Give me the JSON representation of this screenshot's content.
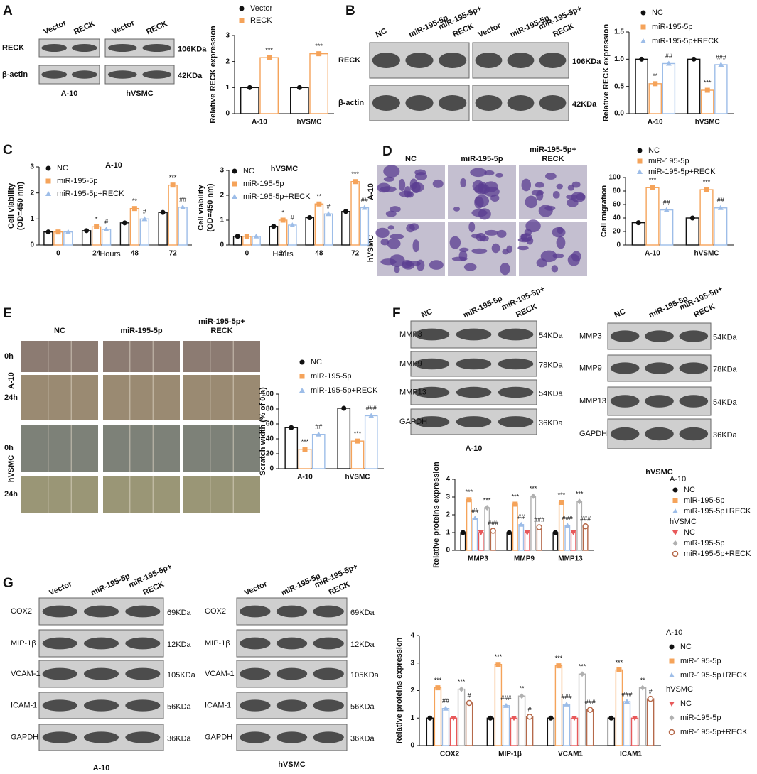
{
  "panel_labels": [
    "A",
    "B",
    "C",
    "D",
    "E",
    "F",
    "G"
  ],
  "blots": [
    {
      "cell_lines": [
        "A-10",
        "hVSMC"
      ],
      "lanes": [
        [
          "Vector"
        ],
        [
          "RECK"
        ],
        [
          "Vector"
        ],
        [
          "RECK"
        ]
      ],
      "rows": [
        {
          "protein": "RECK",
          "size": "106KDa"
        },
        {
          "protein": "β-actin",
          "size": "42KDa"
        }
      ]
    },
    {
      "lanes": [
        [
          "NC"
        ],
        [
          "miR-195-5p"
        ],
        [
          "miR-195-5p+",
          "RECK"
        ],
        [
          "Vector"
        ],
        [
          "miR-195-5p"
        ],
        [
          "miR-195-5p+",
          "RECK"
        ]
      ],
      "rows": [
        {
          "protein": "RECK",
          "size": "106KDa"
        },
        {
          "protein": "β-actin",
          "size": "42KDa"
        }
      ]
    },
    {
      "cell_lines": [
        "A-10"
      ],
      "lanes": [
        [
          "NC"
        ],
        [
          "miR-195-5p"
        ],
        [
          "miR-195-5p+",
          "RECK"
        ]
      ],
      "rows": [
        {
          "protein": "MMP3",
          "size": "54KDa"
        },
        {
          "protein": "MMP9",
          "size": "78KDa"
        },
        {
          "protein": "MMP13",
          "size": "54KDa"
        },
        {
          "protein": "GAPDH",
          "size": "36KDa"
        }
      ]
    },
    {
      "cell_lines": [
        "hVSMC"
      ],
      "lanes": [
        [
          "NC"
        ],
        [
          "miR-195-5p"
        ],
        [
          "miR-195-5p+",
          "RECK"
        ]
      ],
      "rows": [
        {
          "protein": "MMP3",
          "size": "54KDa"
        },
        {
          "protein": "MMP9",
          "size": "78KDa"
        },
        {
          "protein": "MMP13",
          "size": "54KDa"
        },
        {
          "protein": "GAPDH",
          "size": "36KDa"
        }
      ]
    },
    {
      "cell_lines": [
        "A-10"
      ],
      "lanes": [
        [
          "Vector"
        ],
        [
          "miR-195-5p"
        ],
        [
          "miR-195-5p+",
          "RECK"
        ]
      ],
      "rows": [
        {
          "protein": "COX2",
          "size": "69KDa"
        },
        {
          "protein": "MIP-1β",
          "size": "12KDa"
        },
        {
          "protein": "VCAM-1",
          "size": "105KDa"
        },
        {
          "protein": "ICAM-1",
          "size": "56KDa"
        },
        {
          "protein": "GAPDH",
          "size": "36KDa"
        }
      ]
    },
    {
      "cell_lines": [
        "hVSMC"
      ],
      "lanes": [
        [
          "Vector"
        ],
        [
          "miR-195-5p"
        ],
        [
          "miR-195-5p+",
          "RECK"
        ]
      ],
      "rows": [
        {
          "protein": "COX2",
          "size": "69KDa"
        },
        {
          "protein": "MIP-1β",
          "size": "12KDa"
        },
        {
          "protein": "VCAM-1",
          "size": "105KDa"
        },
        {
          "protein": "ICAM-1",
          "size": "56KDa"
        },
        {
          "protein": "GAPDH",
          "size": "36KDa"
        }
      ]
    }
  ],
  "micrographs": [
    {
      "columns": [
        [
          "NC"
        ],
        [
          "miR-195-5p"
        ],
        [
          "miR-195-5p+",
          "RECK"
        ]
      ],
      "row_groups": [
        {
          "name": "A-10",
          "rows": []
        },
        {
          "name": "hVSMC",
          "rows": []
        }
      ]
    },
    {
      "columns": [
        [
          "NC"
        ],
        [
          "miR-195-5p"
        ],
        [
          "miR-195-5p+",
          "RECK"
        ]
      ],
      "row_groups": [
        {
          "name": "A-10",
          "rows": [
            "0h",
            "24h"
          ]
        },
        {
          "name": "hVSMC",
          "rows": [
            "0h",
            "24h"
          ]
        }
      ]
    }
  ],
  "chart_data": [
    {
      "type": "bar",
      "ylabel": [
        "Relative RECK expression"
      ],
      "categories": [
        "A-10",
        "hVSMC"
      ],
      "series": [
        {
          "name": "Vector",
          "color": "#111111",
          "marker": "circle",
          "values": [
            1,
            1
          ],
          "significance": [
            null,
            null
          ]
        },
        {
          "name": "RECK",
          "color": "#f5a35a",
          "marker": "square",
          "values": [
            2.15,
            2.3
          ],
          "significance": [
            "***",
            "***"
          ]
        }
      ],
      "ylim": [
        0,
        3
      ],
      "yticks": [
        0,
        1,
        2,
        3
      ]
    },
    {
      "type": "bar",
      "ylabel": [
        "Relative RECK expression"
      ],
      "categories": [
        "A-10",
        "hVSMC"
      ],
      "series": [
        {
          "name": "NC",
          "color": "#111111",
          "marker": "circle",
          "values": [
            1,
            1
          ],
          "significance": [
            null,
            null
          ]
        },
        {
          "name": "miR-195-5p",
          "color": "#f5a35a",
          "marker": "square",
          "values": [
            0.55,
            0.43
          ],
          "significance": [
            "**",
            "***"
          ]
        },
        {
          "name": "miR-195-5p+RECK",
          "color": "#9dbde8",
          "marker": "triangle",
          "values": [
            0.92,
            0.9
          ],
          "significance": [
            "##",
            "###"
          ]
        }
      ],
      "ylim": [
        0,
        1.5
      ],
      "yticks": [
        {
          "value": 0,
          "label": "0.0"
        },
        0.5,
        {
          "value": 1,
          "label": "1.0"
        },
        1.5
      ]
    },
    {
      "type": "bar",
      "title": "A-10",
      "xlabel": "Hours",
      "ylabel": [
        "Cell viability",
        "(OD=450 nm)"
      ],
      "categories": [
        "0",
        "24",
        "48",
        "72"
      ],
      "series": [
        {
          "name": "NC",
          "color": "#111111",
          "marker": "circle",
          "values": [
            0.5,
            0.55,
            0.85,
            1.25
          ],
          "significance": [
            null,
            null,
            null,
            null
          ]
        },
        {
          "name": "miR-195-5p",
          "color": "#f5a35a",
          "marker": "square",
          "values": [
            0.5,
            0.7,
            1.4,
            2.3
          ],
          "significance": [
            null,
            "*",
            "**",
            "***"
          ]
        },
        {
          "name": "miR-195-5p+RECK",
          "color": "#9dbde8",
          "marker": "triangle",
          "values": [
            0.5,
            0.6,
            1.0,
            1.45
          ],
          "significance": [
            null,
            "#",
            "#",
            "##"
          ]
        }
      ],
      "ylim": [
        0,
        3
      ],
      "yticks": [
        0,
        1,
        2,
        3
      ]
    },
    {
      "type": "bar",
      "title": "hVSMC",
      "xlabel": "Hours",
      "ylabel": [
        "Cell viability",
        "(OD=450 nm)"
      ],
      "categories": [
        "0",
        "24",
        "48",
        "72"
      ],
      "series": [
        {
          "name": "NC",
          "color": "#111111",
          "marker": "circle",
          "values": [
            0.35,
            0.75,
            1.1,
            1.35
          ],
          "significance": [
            null,
            null,
            null,
            null
          ]
        },
        {
          "name": "miR-195-5p",
          "color": "#f5a35a",
          "marker": "square",
          "values": [
            0.35,
            1.0,
            1.65,
            2.55
          ],
          "significance": [
            null,
            "*",
            "**",
            "***"
          ]
        },
        {
          "name": "miR-195-5p+RECK",
          "color": "#9dbde8",
          "marker": "triangle",
          "values": [
            0.35,
            0.8,
            1.25,
            1.5
          ],
          "significance": [
            null,
            "#",
            "#",
            "##"
          ]
        }
      ],
      "ylim": [
        0,
        3
      ],
      "yticks": [
        0,
        1,
        2,
        3
      ]
    },
    {
      "type": "bar",
      "ylabel": [
        "Cell migration"
      ],
      "categories": [
        "A-10",
        "hVSMC"
      ],
      "series": [
        {
          "name": "NC",
          "color": "#111111",
          "marker": "circle",
          "values": [
            33,
            40
          ],
          "significance": [
            null,
            null
          ]
        },
        {
          "name": "miR-195-5p",
          "color": "#f5a35a",
          "marker": "square",
          "values": [
            85,
            82
          ],
          "significance": [
            "***",
            "***"
          ]
        },
        {
          "name": "miR-195-5p+RECK",
          "color": "#9dbde8",
          "marker": "triangle",
          "values": [
            52,
            55
          ],
          "significance": [
            "##",
            "##"
          ]
        }
      ],
      "ylim": [
        0,
        100
      ],
      "yticks": [
        0,
        20,
        40,
        60,
        80,
        100
      ]
    },
    {
      "type": "bar",
      "ylabel": [
        "Scratch width (% of 0 h)"
      ],
      "categories": [
        "A-10",
        "hVSMC"
      ],
      "series": [
        {
          "name": "NC",
          "color": "#111111",
          "marker": "circle",
          "values": [
            55,
            81
          ],
          "significance": [
            null,
            null
          ]
        },
        {
          "name": "miR-195-5p",
          "color": "#f5a35a",
          "marker": "square",
          "values": [
            26,
            37
          ],
          "significance": [
            "***",
            "***"
          ]
        },
        {
          "name": "miR-195-5p+RECK",
          "color": "#9dbde8",
          "marker": "triangle",
          "values": [
            46,
            71
          ],
          "significance": [
            "##",
            "###"
          ]
        }
      ],
      "ylim": [
        0,
        100
      ],
      "yticks": [
        0,
        20,
        40,
        60,
        80,
        100
      ]
    },
    {
      "type": "bar",
      "ylabel": [
        "Relative proteins expression"
      ],
      "categories": [
        "MMP3",
        "MMP9",
        "MMP13"
      ],
      "series_groups": [
        {
          "name": "A-10",
          "series": [
            {
              "name": "NC",
              "color": "#111111",
              "marker": "circle",
              "values": [
                1,
                1,
                1
              ],
              "significance": [
                null,
                null,
                null
              ]
            },
            {
              "name": "miR-195-5p",
              "color": "#f5a35a",
              "marker": "square",
              "values": [
                2.85,
                2.6,
                2.7
              ],
              "significance": [
                "***",
                "***",
                "***"
              ]
            },
            {
              "name": "miR-195-5p+RECK",
              "color": "#9dbde8",
              "marker": "triangle",
              "values": [
                1.8,
                1.45,
                1.4
              ],
              "significance": [
                "##",
                "##",
                "###"
              ]
            }
          ]
        },
        {
          "name": "hVSMC",
          "series": [
            {
              "name": "NC",
              "color": "#e8595a",
              "marker": "triangle-down",
              "values": [
                1,
                1,
                1
              ],
              "significance": [
                null,
                null,
                null
              ]
            },
            {
              "name": "miR-195-5p",
              "color": "#b0b0b0",
              "marker": "diamond",
              "values": [
                2.4,
                3.05,
                2.75
              ],
              "significance": [
                "***",
                "***",
                "***"
              ]
            },
            {
              "name": "miR-195-5p+RECK",
              "color": "#b5694a",
              "marker": "open-circle",
              "values": [
                1.1,
                1.3,
                1.35
              ],
              "significance": [
                "###",
                "###",
                "###"
              ]
            }
          ]
        }
      ],
      "ylim": [
        0,
        4
      ],
      "yticks": [
        0,
        1,
        2,
        3,
        4
      ]
    },
    {
      "type": "bar",
      "ylabel": [
        "Relative proteins expression"
      ],
      "categories": [
        "COX2",
        "MIP-1β",
        "VCAM1",
        "ICAM1"
      ],
      "series_groups": [
        {
          "name": "A-10",
          "series": [
            {
              "name": "NC",
              "color": "#111111",
              "marker": "circle",
              "values": [
                1,
                1,
                1,
                1
              ],
              "significance": [
                null,
                null,
                null,
                null
              ]
            },
            {
              "name": "miR-195-5p",
              "color": "#f5a35a",
              "marker": "square",
              "values": [
                2.1,
                2.95,
                2.9,
                2.75
              ],
              "significance": [
                "***",
                "***",
                "***",
                "***"
              ]
            },
            {
              "name": "miR-195-5p+RECK",
              "color": "#9dbde8",
              "marker": "triangle",
              "values": [
                1.35,
                1.45,
                1.5,
                1.6
              ],
              "significance": [
                "##",
                "###",
                "###",
                "###"
              ]
            }
          ]
        },
        {
          "name": "hVSMC",
          "series": [
            {
              "name": "NC",
              "color": "#e8595a",
              "marker": "triangle-down",
              "values": [
                1,
                1,
                1,
                1
              ],
              "significance": [
                null,
                null,
                null,
                null
              ]
            },
            {
              "name": "miR-195-5p",
              "color": "#b0b0b0",
              "marker": "diamond",
              "values": [
                2.05,
                1.8,
                2.6,
                2.1
              ],
              "significance": [
                "***",
                "**",
                "***",
                "**"
              ]
            },
            {
              "name": "miR-195-5p+RECK",
              "color": "#b5694a",
              "marker": "open-circle",
              "values": [
                1.55,
                1.05,
                1.3,
                1.7
              ],
              "significance": [
                "#",
                "#",
                "###",
                "#"
              ]
            }
          ]
        }
      ],
      "ylim": [
        0,
        4
      ],
      "yticks": [
        0,
        1,
        2,
        3,
        4
      ]
    }
  ]
}
